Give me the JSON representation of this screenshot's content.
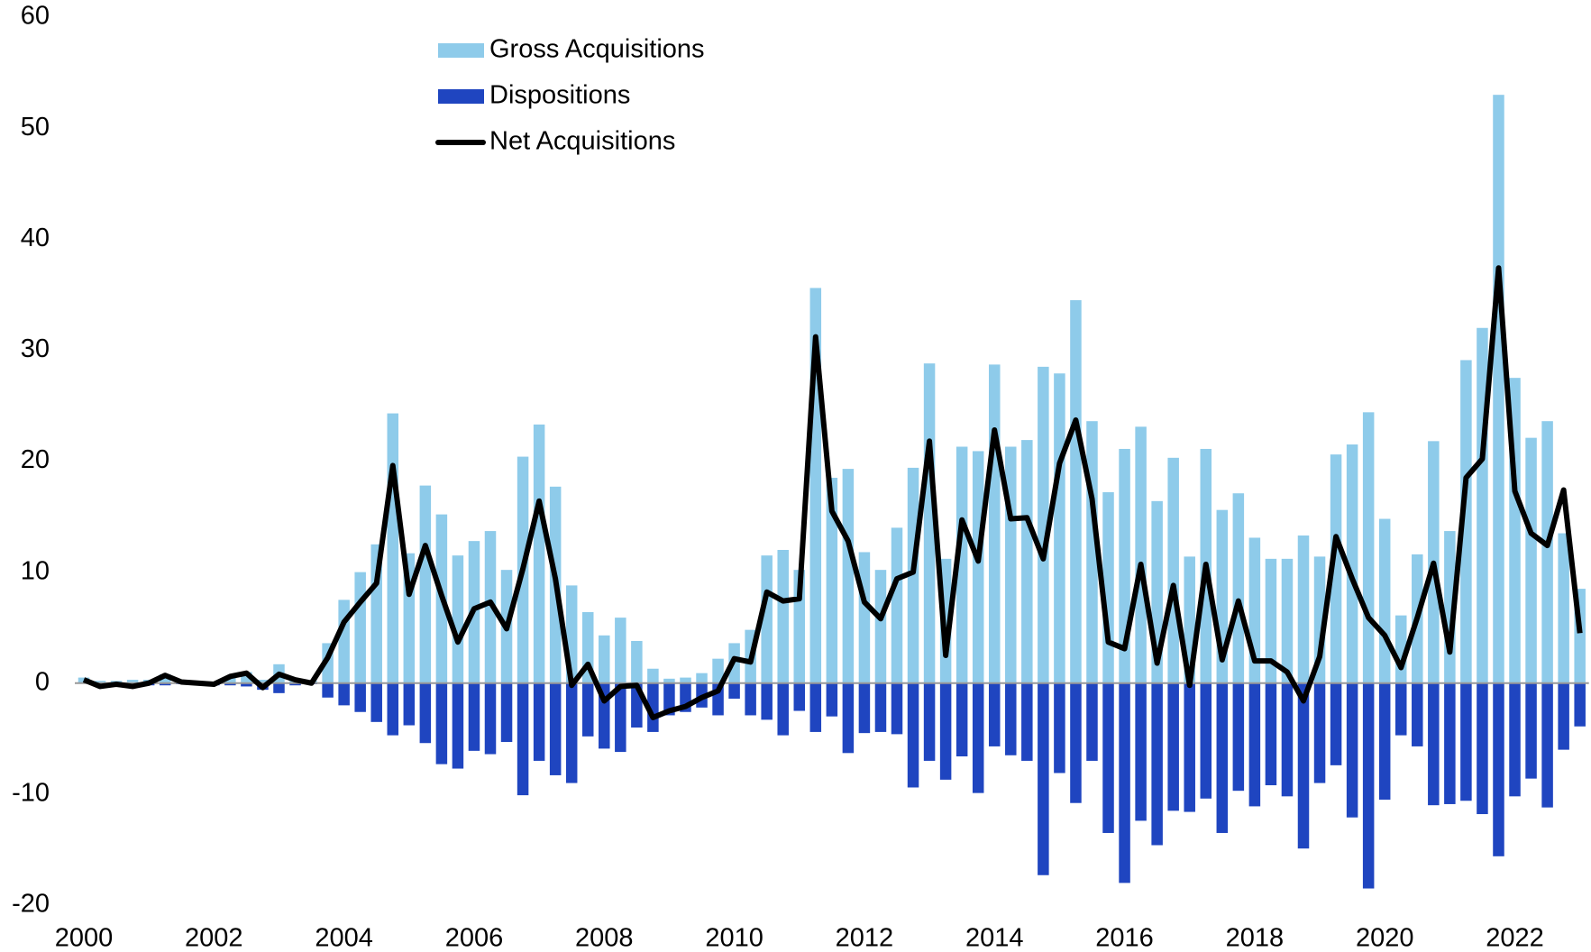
{
  "chart_data": {
    "type": "bar",
    "categories": [
      "2000",
      null,
      null,
      null,
      null,
      null,
      null,
      null,
      "2002",
      null,
      null,
      null,
      null,
      null,
      null,
      null,
      "2004",
      null,
      null,
      null,
      null,
      null,
      null,
      null,
      "2006",
      null,
      null,
      null,
      null,
      null,
      null,
      null,
      "2008",
      null,
      null,
      null,
      null,
      null,
      null,
      null,
      "2010",
      null,
      null,
      null,
      null,
      null,
      null,
      null,
      "2012",
      null,
      null,
      null,
      null,
      null,
      null,
      null,
      "2014",
      null,
      null,
      null,
      null,
      null,
      null,
      null,
      "2016",
      null,
      null,
      null,
      null,
      null,
      null,
      null,
      "2018",
      null,
      null,
      null,
      null,
      null,
      null,
      null,
      "2020",
      null,
      null,
      null,
      null,
      null,
      null,
      null,
      "2022",
      null,
      null,
      null,
      null
    ],
    "series": [
      {
        "name": "Gross Acquisitions",
        "color": "#8ecbea",
        "type": "bar",
        "values": [
          0.5,
          0.2,
          0.2,
          0.3,
          0.3,
          0.8,
          0.2,
          0.1,
          0.1,
          0.6,
          1.0,
          0.3,
          1.7,
          0.3,
          0.2,
          3.6,
          7.5,
          10.0,
          12.5,
          24.3,
          11.7,
          17.8,
          15.2,
          11.5,
          12.8,
          13.7,
          10.2,
          20.4,
          23.3,
          17.7,
          8.8,
          6.4,
          4.3,
          5.9,
          3.8,
          1.3,
          0.4,
          0.5,
          0.9,
          2.2,
          3.6,
          4.8,
          11.5,
          12.0,
          10.2,
          35.6,
          18.5,
          19.3,
          11.8,
          10.2,
          14.0,
          19.4,
          28.8,
          11.2,
          21.3,
          20.9,
          28.7,
          21.3,
          21.9,
          28.5,
          27.9,
          34.5,
          23.6,
          17.2,
          21.1,
          23.1,
          16.4,
          20.3,
          11.4,
          21.1,
          15.6,
          17.1,
          13.1,
          11.2,
          11.2,
          13.3,
          11.4,
          20.6,
          21.5,
          24.4,
          14.8,
          6.1,
          11.6,
          21.8,
          13.7,
          29.1,
          32.0,
          53.0,
          27.5,
          22.1,
          23.6,
          13.5,
          8.5
        ]
      },
      {
        "name": "Dispositions",
        "color": "#1f45c0",
        "type": "bar",
        "values": [
          0,
          -0.2,
          -0.1,
          -0.3,
          -0.2,
          -0.2,
          -0.1,
          -0.1,
          -0.2,
          -0.2,
          -0.3,
          -0.6,
          -0.9,
          -0.2,
          -0.1,
          -1.3,
          -2.0,
          -2.6,
          -3.5,
          -4.7,
          -3.8,
          -5.4,
          -7.3,
          -7.7,
          -6.1,
          -6.4,
          -5.3,
          -10.1,
          -7.0,
          -8.3,
          -9.0,
          -4.8,
          -5.9,
          -6.2,
          -4.0,
          -4.4,
          -2.9,
          -2.6,
          -2.2,
          -2.9,
          -1.4,
          -2.9,
          -3.3,
          -4.7,
          -2.5,
          -4.4,
          -3.0,
          -6.3,
          -4.5,
          -4.4,
          -4.6,
          -9.4,
          -7.0,
          -8.7,
          -6.6,
          -9.9,
          -5.7,
          -6.5,
          -7.0,
          -17.3,
          -8.1,
          -10.8,
          -7.0,
          -13.5,
          -18.0,
          -12.4,
          -14.6,
          -11.5,
          -11.6,
          -10.4,
          -13.5,
          -9.7,
          -11.1,
          -9.2,
          -10.2,
          -14.9,
          -9.0,
          -7.4,
          -12.1,
          -18.5,
          -10.5,
          -4.7,
          -5.7,
          -11.0,
          -10.9,
          -10.6,
          -11.8,
          -15.6,
          -10.2,
          -8.6,
          -11.2,
          -6.0,
          -3.9
        ]
      },
      {
        "name": "Net Acquisitions",
        "color": "#000000",
        "type": "line",
        "values": [
          0.3,
          -0.3,
          -0.1,
          -0.3,
          0,
          0.7,
          0.1,
          0,
          -0.1,
          0.6,
          0.9,
          -0.4,
          0.8,
          0.3,
          0,
          2.3,
          5.5,
          7.3,
          9.0,
          19.6,
          8.0,
          12.4,
          7.9,
          3.7,
          6.7,
          7.3,
          4.9,
          10.3,
          16.4,
          9.4,
          -0.2,
          1.7,
          -1.6,
          -0.3,
          -0.2,
          -3.1,
          -2.5,
          -2.1,
          -1.3,
          -0.7,
          2.2,
          1.9,
          8.2,
          7.4,
          7.6,
          31.2,
          15.5,
          12.8,
          7.3,
          5.8,
          9.4,
          10.0,
          21.8,
          2.5,
          14.7,
          11.0,
          22.8,
          14.8,
          14.9,
          11.2,
          19.8,
          23.7,
          16.6,
          3.7,
          3.1,
          10.7,
          1.8,
          8.8,
          -0.2,
          10.7,
          2.1,
          7.4,
          2.0,
          2.0,
          1.0,
          -1.6,
          2.4,
          13.2,
          9.4,
          5.9,
          4.3,
          1.4,
          5.9,
          10.8,
          2.8,
          18.5,
          20.2,
          37.4,
          17.3,
          13.5,
          12.4,
          17.4,
          4.5
        ]
      }
    ],
    "ylim": [
      -20,
      60
    ],
    "yticks": [
      -20,
      -10,
      0,
      10,
      20,
      30,
      40,
      50,
      60
    ],
    "legend": "upper left"
  }
}
